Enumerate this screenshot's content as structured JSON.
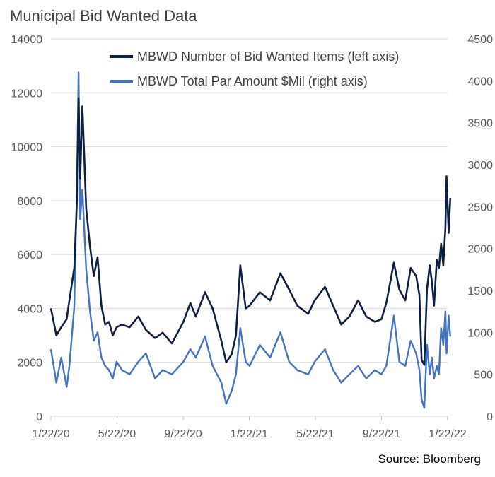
{
  "title": "Municipal Bid Wanted Data",
  "source": "Source: Bloomberg",
  "chart_data": {
    "type": "line",
    "x_ticks": [
      "1/22/20",
      "5/22/20",
      "9/22/20",
      "1/22/21",
      "5/22/21",
      "9/22/21",
      "1/22/22"
    ],
    "y_left_ticks": [
      "0",
      "2000",
      "4000",
      "6000",
      "8000",
      "10000",
      "12000",
      "14000"
    ],
    "y_right_ticks": [
      "0",
      "500",
      "1000",
      "1500",
      "2000",
      "2500",
      "3000",
      "3500",
      "4000",
      "4500"
    ],
    "ylim_left": [
      0,
      14000
    ],
    "ylim_right": [
      0,
      4500
    ],
    "grid": true,
    "legend_position": "top-right",
    "series": [
      {
        "name": "MBWD Number of Bid Wanted Items (left axis)",
        "axis": "left",
        "color": "#0d1f45",
        "x": [
          "2020-01-22",
          "2020-02-01",
          "2020-02-10",
          "2020-02-20",
          "2020-02-25",
          "2020-03-05",
          "2020-03-10",
          "2020-03-13",
          "2020-03-16",
          "2020-03-20",
          "2020-03-27",
          "2020-04-03",
          "2020-04-10",
          "2020-04-17",
          "2020-04-24",
          "2020-05-01",
          "2020-05-08",
          "2020-05-15",
          "2020-05-22",
          "2020-06-01",
          "2020-06-15",
          "2020-07-01",
          "2020-07-15",
          "2020-08-01",
          "2020-08-15",
          "2020-09-01",
          "2020-09-22",
          "2020-10-05",
          "2020-10-15",
          "2020-11-01",
          "2020-11-15",
          "2020-12-01",
          "2020-12-10",
          "2020-12-20",
          "2020-12-28",
          "2021-01-05",
          "2021-01-15",
          "2021-01-22",
          "2021-02-10",
          "2021-03-01",
          "2021-03-20",
          "2021-04-05",
          "2021-04-20",
          "2021-05-10",
          "2021-05-22",
          "2021-06-10",
          "2021-06-25",
          "2021-07-10",
          "2021-07-25",
          "2021-08-10",
          "2021-08-25",
          "2021-09-10",
          "2021-09-22",
          "2021-10-01",
          "2021-10-15",
          "2021-10-25",
          "2021-11-05",
          "2021-11-15",
          "2021-11-25",
          "2021-12-01",
          "2021-12-05",
          "2021-12-10",
          "2021-12-15",
          "2021-12-20",
          "2021-12-24",
          "2021-12-28",
          "2022-01-02",
          "2022-01-06",
          "2022-01-10",
          "2022-01-14",
          "2022-01-18",
          "2022-01-20",
          "2022-01-24",
          "2022-01-27"
        ],
        "values": [
          4000,
          3000,
          3300,
          3600,
          4300,
          5500,
          8000,
          11800,
          8800,
          11500,
          7700,
          6300,
          5200,
          5900,
          4100,
          3400,
          3500,
          3000,
          3300,
          3400,
          3300,
          3700,
          3200,
          2900,
          3100,
          2700,
          3500,
          4200,
          3700,
          4600,
          4000,
          2800,
          2000,
          2300,
          3000,
          5600,
          4000,
          4100,
          4600,
          4300,
          5300,
          4700,
          4100,
          3800,
          4300,
          4800,
          4100,
          3400,
          3700,
          4300,
          3700,
          3500,
          3600,
          4200,
          5700,
          4700,
          4300,
          5500,
          5200,
          4500,
          2100,
          1900,
          4700,
          5600,
          5000,
          4100,
          5800,
          5500,
          6400,
          5600,
          7000,
          8900,
          6800,
          8100
        ]
      },
      {
        "name": "MBWD Total Par Amount $Mil (right axis)",
        "axis": "right",
        "color": "#4472c4",
        "x": [
          "2020-01-22",
          "2020-02-01",
          "2020-02-10",
          "2020-02-20",
          "2020-02-25",
          "2020-03-05",
          "2020-03-10",
          "2020-03-13",
          "2020-03-16",
          "2020-03-20",
          "2020-03-27",
          "2020-04-03",
          "2020-04-10",
          "2020-04-17",
          "2020-04-24",
          "2020-05-01",
          "2020-05-08",
          "2020-05-15",
          "2020-05-22",
          "2020-06-01",
          "2020-06-15",
          "2020-07-01",
          "2020-07-15",
          "2020-08-01",
          "2020-08-15",
          "2020-09-01",
          "2020-09-22",
          "2020-10-05",
          "2020-10-15",
          "2020-11-01",
          "2020-11-15",
          "2020-12-01",
          "2020-12-10",
          "2020-12-20",
          "2020-12-28",
          "2021-01-05",
          "2021-01-15",
          "2021-01-22",
          "2021-02-10",
          "2021-03-01",
          "2021-03-20",
          "2021-04-05",
          "2021-04-20",
          "2021-05-10",
          "2021-05-22",
          "2021-06-10",
          "2021-06-25",
          "2021-07-10",
          "2021-07-25",
          "2021-08-10",
          "2021-08-25",
          "2021-09-10",
          "2021-09-22",
          "2021-10-01",
          "2021-10-15",
          "2021-10-25",
          "2021-11-05",
          "2021-11-15",
          "2021-11-25",
          "2021-12-01",
          "2021-12-05",
          "2021-12-10",
          "2021-12-15",
          "2021-12-20",
          "2021-12-24",
          "2021-12-28",
          "2022-01-02",
          "2022-01-06",
          "2022-01-10",
          "2022-01-14",
          "2022-01-18",
          "2022-01-20",
          "2022-01-24",
          "2022-01-27"
        ],
        "values": [
          800,
          400,
          700,
          350,
          600,
          1300,
          2750,
          4100,
          2350,
          2700,
          1750,
          1250,
          900,
          1000,
          700,
          600,
          550,
          450,
          650,
          550,
          500,
          650,
          750,
          450,
          550,
          500,
          650,
          800,
          700,
          950,
          600,
          400,
          150,
          300,
          500,
          1050,
          650,
          600,
          850,
          700,
          1000,
          650,
          550,
          500,
          650,
          800,
          550,
          400,
          500,
          600,
          450,
          550,
          500,
          600,
          1200,
          650,
          600,
          900,
          750,
          550,
          200,
          100,
          850,
          500,
          700,
          450,
          600,
          500,
          1050,
          850,
          1250,
          750,
          1200,
          950
        ]
      }
    ]
  }
}
